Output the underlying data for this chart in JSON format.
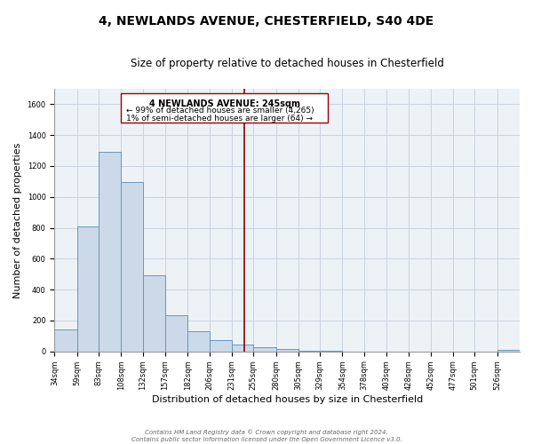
{
  "title1": "4, NEWLANDS AVENUE, CHESTERFIELD, S40 4DE",
  "title2": "Size of property relative to detached houses in Chesterfield",
  "xlabel": "Distribution of detached houses by size in Chesterfield",
  "ylabel": "Number of detached properties",
  "bin_labels": [
    "34sqm",
    "59sqm",
    "83sqm",
    "108sqm",
    "132sqm",
    "157sqm",
    "182sqm",
    "206sqm",
    "231sqm",
    "255sqm",
    "280sqm",
    "305sqm",
    "329sqm",
    "354sqm",
    "378sqm",
    "403sqm",
    "428sqm",
    "452sqm",
    "477sqm",
    "501sqm",
    "526sqm"
  ],
  "bar_heights": [
    140,
    810,
    1290,
    1095,
    490,
    235,
    130,
    75,
    45,
    25,
    15,
    5,
    2,
    1,
    1,
    0,
    0,
    0,
    0,
    0,
    8
  ],
  "bar_color": "#ccd9e8",
  "bar_edge_color": "#6699bb",
  "ylim": [
    0,
    1700
  ],
  "yticks": [
    0,
    200,
    400,
    600,
    800,
    1000,
    1200,
    1400,
    1600
  ],
  "property_line_x": 245,
  "bin_edges_numeric": [
    34,
    59,
    83,
    108,
    132,
    157,
    182,
    206,
    231,
    255,
    280,
    305,
    329,
    354,
    378,
    403,
    428,
    452,
    477,
    501,
    526,
    551
  ],
  "annotation_title": "4 NEWLANDS AVENUE: 245sqm",
  "annotation_line1": "← 99% of detached houses are smaller (4,265)",
  "annotation_line2": "1% of semi-detached houses are larger (64) →",
  "footer1": "Contains HM Land Registry data © Crown copyright and database right 2024.",
  "footer2": "Contains public sector information licensed under the Open Government Licence v3.0.",
  "background_color": "#edf2f7",
  "grid_color": "#c8d4e0",
  "title1_fontsize": 10,
  "title2_fontsize": 8.5,
  "xlabel_fontsize": 8,
  "ylabel_fontsize": 8,
  "tick_fontsize": 6,
  "footer_fontsize": 5,
  "ann_title_fontsize": 7,
  "ann_text_fontsize": 6.5
}
